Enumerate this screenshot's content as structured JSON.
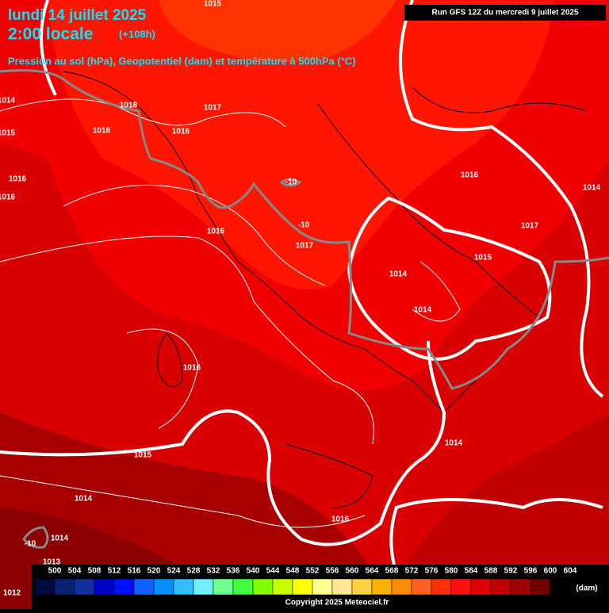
{
  "header": {
    "date": "lundi 14 juillet 2025",
    "time": "2:00 locale",
    "lead": "(+108h)",
    "subtitle": "Pression au sol (hPa), Geopotentiel (dam) et température à 500hPa (°C)",
    "run": "Run GFS 12Z du mercredi 9 juillet 2025"
  },
  "map": {
    "labels": [
      "1015",
      "1014",
      "1015",
      "1018",
      "1017",
      "1018",
      "1016",
      "1016",
      "1016",
      "1016",
      "1014",
      "1016",
      "-10",
      "-10",
      "1017",
      "1017",
      "1015",
      "1014",
      "1014",
      "1016",
      "1014",
      "1015",
      "1014",
      "1016",
      "-10",
      "1014",
      "1013",
      "1012"
    ]
  },
  "legend": {
    "labels": [
      500,
      504,
      508,
      512,
      516,
      520,
      524,
      528,
      532,
      536,
      540,
      544,
      548,
      552,
      556,
      560,
      564,
      568,
      572,
      576,
      580,
      584,
      588,
      592,
      596,
      600,
      604
    ],
    "colors": [
      "#000a40",
      "#0a2070",
      "#1030a0",
      "#0000c8",
      "#0010ff",
      "#1060ff",
      "#0090ff",
      "#30c0ff",
      "#70f0ff",
      "#70ff90",
      "#40ff40",
      "#80ff00",
      "#c8ff00",
      "#ffff00",
      "#ffff90",
      "#ffe890",
      "#ffd040",
      "#ffb000",
      "#ff8c00",
      "#ff6020",
      "#ff3000",
      "#ff1010",
      "#e00000",
      "#c00000",
      "#a00000",
      "#700000",
      "#000000"
    ],
    "unit": "(dam)"
  },
  "footer": {
    "copyright": "Copyright 2025 Meteociel.fr"
  }
}
